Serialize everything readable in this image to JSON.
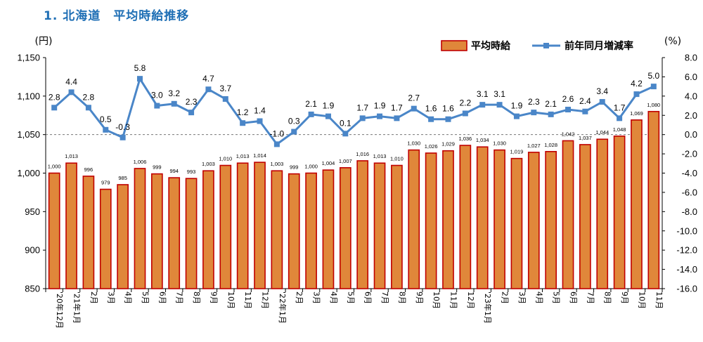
{
  "title": "1. 北海道　平均時給推移",
  "colors": {
    "bar_fill": "#e0873a",
    "bar_stroke": "#c00000",
    "line": "#4a86c8",
    "title": "#1f6fb5"
  },
  "chart_data": {
    "type": "bar+line",
    "categories": [
      "'20年12月",
      "'21年1月",
      "2月",
      "3月",
      "4月",
      "5月",
      "6月",
      "7月",
      "8月",
      "9月",
      "10月",
      "11月",
      "12月",
      "'22年1月",
      "2月",
      "3月",
      "4月",
      "5月",
      "6月",
      "7月",
      "8月",
      "9月",
      "10月",
      "11月",
      "12月",
      "'23年1月",
      "2月",
      "3月",
      "4月",
      "5月",
      "6月",
      "7月",
      "8月",
      "9月",
      "10月",
      "11月"
    ],
    "series": [
      {
        "name": "平均時給",
        "axis": "left",
        "type": "bar",
        "values": [
          1000,
          1013,
          996,
          979,
          985,
          1006,
          999,
          994,
          993,
          1003,
          1010,
          1013,
          1014,
          1003,
          999,
          1000,
          1004,
          1007,
          1016,
          1013,
          1010,
          1030,
          1026,
          1029,
          1036,
          1034,
          1030,
          1019,
          1027,
          1028,
          1042,
          1037,
          1044,
          1048,
          1069,
          1080
        ],
        "labels": [
          "1,000",
          "1,013",
          "996",
          "979",
          "985",
          "1,006",
          "999",
          "994",
          "993",
          "1,003",
          "1,010",
          "1,013",
          "1,014",
          "1,003",
          "999",
          "1,000",
          "1,004",
          "1,007",
          "1,016",
          "1,013",
          "1,010",
          "1,030",
          "1,026",
          "1,029",
          "1,036",
          "1,034",
          "1,030",
          "1,019",
          "1,027",
          "1,028",
          "1,042",
          "1,037",
          "1,044",
          "1,048",
          "1,069",
          "1,080"
        ]
      },
      {
        "name": "前年同月増減率",
        "axis": "right",
        "type": "line",
        "values": [
          2.8,
          4.4,
          2.8,
          0.5,
          -0.3,
          5.8,
          3.0,
          3.2,
          2.3,
          4.7,
          3.7,
          1.2,
          1.4,
          -1.0,
          0.3,
          2.1,
          1.9,
          0.1,
          1.7,
          1.9,
          1.7,
          2.7,
          1.6,
          1.6,
          2.2,
          3.1,
          3.1,
          1.9,
          2.3,
          2.1,
          2.6,
          2.4,
          3.4,
          1.7,
          4.2,
          5.0
        ],
        "labels": [
          "2.8",
          "4.4",
          "2.8",
          "0.5",
          "-0.3",
          "5.8",
          "3.0",
          "3.2",
          "2.3",
          "4.7",
          "3.7",
          "1.2",
          "1.4",
          "-1.0",
          "0.3",
          "2.1",
          "1.9",
          "0.1",
          "1.7",
          "1.9",
          "1.7",
          "2.7",
          "1.6",
          "1.6",
          "2.2",
          "3.1",
          "3.1",
          "1.9",
          "2.3",
          "2.1",
          "2.6",
          "2.4",
          "3.4",
          "1.7",
          "4.2",
          "5.0"
        ]
      }
    ],
    "left_axis": {
      "unit": "(円)",
      "min": 850,
      "max": 1150,
      "step": 50,
      "tick_labels": [
        "1,150",
        "1,100",
        "1,050",
        "1,000",
        "950",
        "900",
        "850"
      ]
    },
    "right_axis": {
      "unit": "(%)",
      "min": -16,
      "max": 8,
      "step": 2,
      "tick_labels": [
        "8.0",
        "6.0",
        "4.0",
        "2.0",
        "0.0",
        "-2.0",
        "-4.0",
        "-6.0",
        "-8.0",
        "-10.0",
        "-12.0",
        "-14.0",
        "-16.0"
      ]
    },
    "zero_line": "dashed",
    "legend_position": "top-right"
  }
}
